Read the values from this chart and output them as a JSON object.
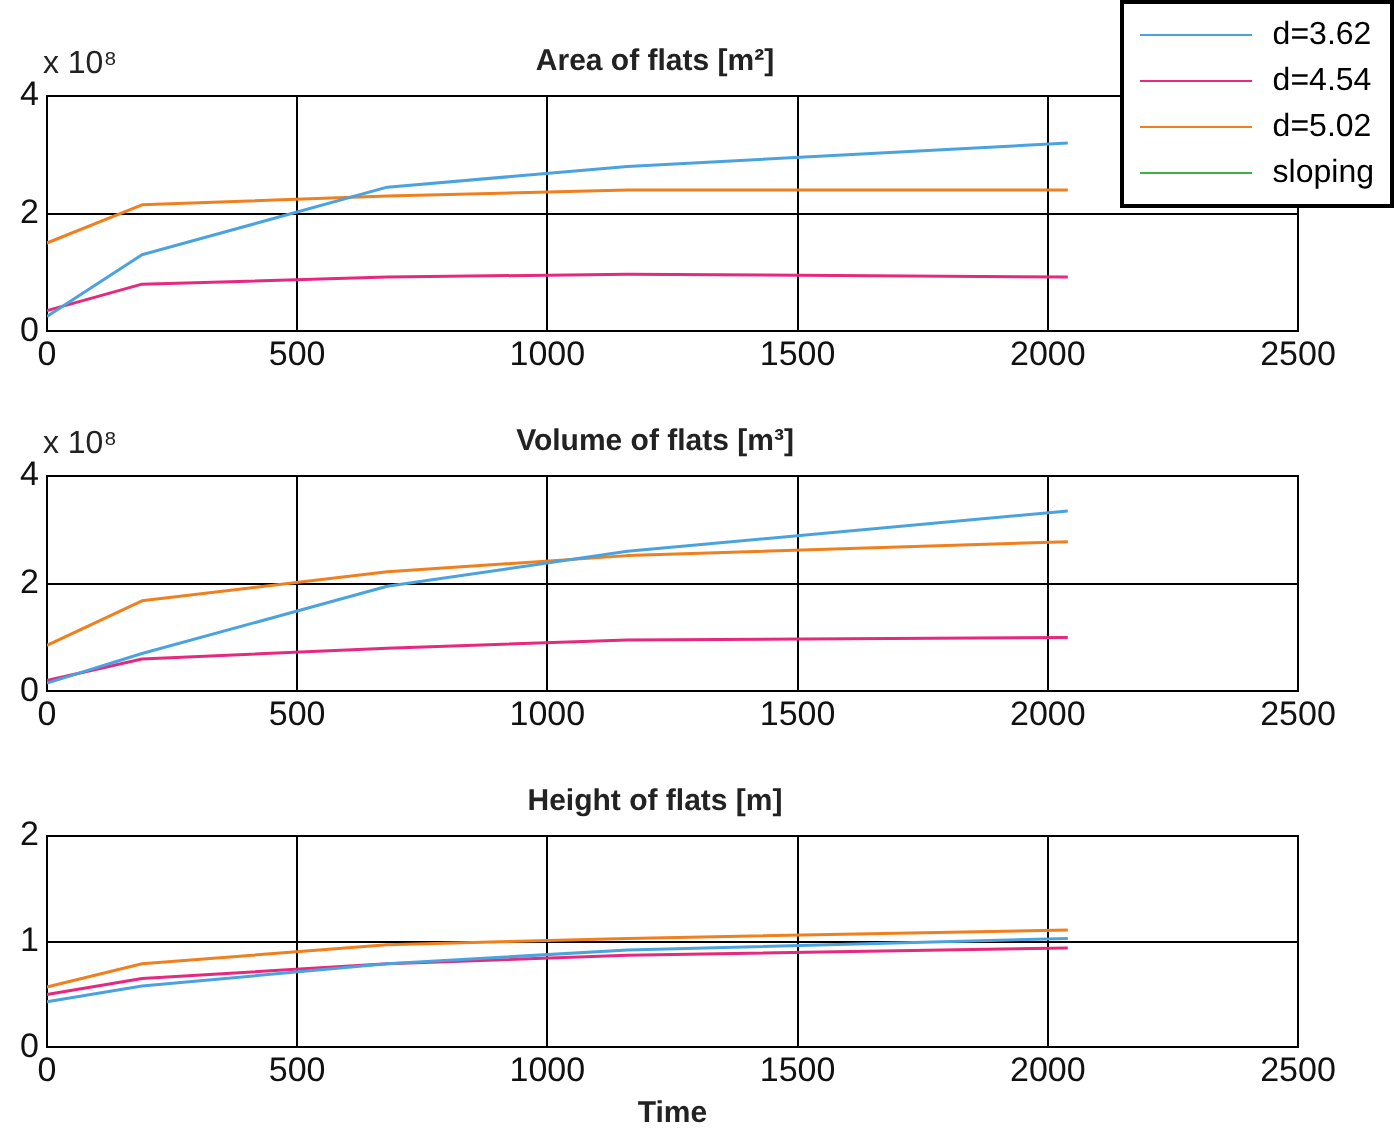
{
  "chart_data": [
    {
      "type": "line",
      "title": "Area of flats [m²]",
      "annotations": [
        "x 10⁸"
      ],
      "x": [
        0,
        190,
        680,
        1160,
        2040
      ],
      "xlim": [
        0,
        2500
      ],
      "xticks": [
        0,
        500,
        1000,
        1500,
        2000,
        2500
      ],
      "ylim": [
        0,
        4
      ],
      "yticks": [
        0,
        2,
        4
      ],
      "grid": true,
      "legend": "top right",
      "marker": "none",
      "line_style": "solid",
      "series": [
        {
          "name": "d=3.62",
          "color": "#4aa3df",
          "values": [
            0.25,
            1.3,
            2.45,
            2.8,
            3.2
          ]
        },
        {
          "name": "d=4.54",
          "color": "#e6287e",
          "values": [
            0.35,
            0.8,
            0.92,
            0.97,
            0.92
          ]
        },
        {
          "name": "d=5.02",
          "color": "#f07f1e",
          "values": [
            1.5,
            2.15,
            2.3,
            2.4,
            2.4
          ]
        },
        {
          "name": "sloping",
          "color": "#3cb43c",
          "values": [
            null,
            null,
            null,
            null,
            null
          ]
        }
      ]
    },
    {
      "type": "line",
      "title": "Volume of flats [m³]",
      "annotations": [
        "x 10⁸"
      ],
      "x": [
        0,
        190,
        680,
        1160,
        2040
      ],
      "xlim": [
        0,
        2500
      ],
      "xticks": [
        0,
        500,
        1000,
        1500,
        2000,
        2500
      ],
      "ylim": [
        0,
        4
      ],
      "yticks": [
        0,
        2,
        4
      ],
      "grid": true,
      "marker": "none",
      "line_style": "solid",
      "series": [
        {
          "color": "#4aa3df",
          "values": [
            0.15,
            0.7,
            1.95,
            2.6,
            3.35
          ]
        },
        {
          "color": "#e6287e",
          "values": [
            0.2,
            0.6,
            0.8,
            0.95,
            1.0
          ]
        },
        {
          "color": "#f07f1e",
          "values": [
            0.85,
            1.68,
            2.22,
            2.52,
            2.78
          ]
        }
      ]
    },
    {
      "type": "line",
      "title": "Height of flats [m]",
      "xlabel": "Time",
      "x": [
        0,
        190,
        680,
        1160,
        2040
      ],
      "xlim": [
        0,
        2500
      ],
      "xticks": [
        0,
        500,
        1000,
        1500,
        2000,
        2500
      ],
      "ylim": [
        0,
        2
      ],
      "yticks": [
        0,
        1,
        2
      ],
      "grid": true,
      "marker": "none",
      "line_style": "solid",
      "series": [
        {
          "color": "#4aa3df",
          "values": [
            0.43,
            0.58,
            0.79,
            0.92,
            1.03
          ]
        },
        {
          "color": "#e6287e",
          "values": [
            0.5,
            0.65,
            0.79,
            0.87,
            0.94
          ]
        },
        {
          "color": "#f07f1e",
          "values": [
            0.57,
            0.79,
            0.97,
            1.03,
            1.11
          ]
        }
      ]
    }
  ]
}
